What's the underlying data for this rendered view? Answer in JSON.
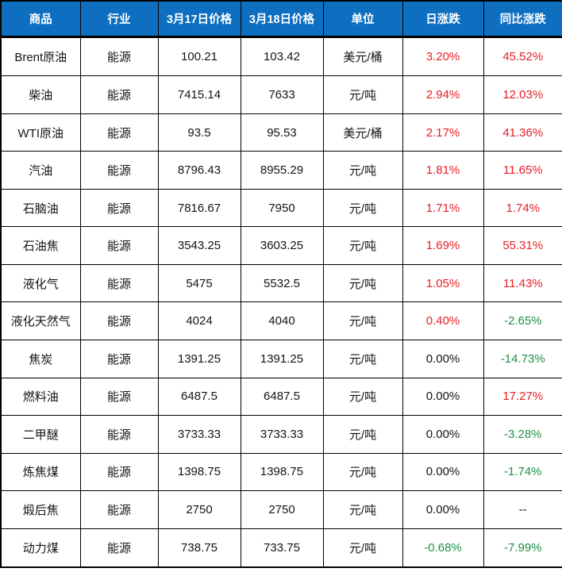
{
  "colors": {
    "header_bg": "#0e6fc1",
    "header_text": "#ffffff",
    "up": "#e81e25",
    "down": "#1e9043",
    "neutral": "#141414",
    "border": "#000000"
  },
  "chart_data": {
    "type": "table",
    "title": "",
    "legend": "red = increase, green = decrease, black = flat",
    "column_keys": [
      "commodity",
      "industry",
      "price-mar17",
      "price-mar18",
      "unit",
      "daily-change",
      "yoy-change"
    ],
    "columns": [
      "商品",
      "行业",
      "3月17日价格",
      "3月18日价格",
      "单位",
      "日涨跌",
      "同比涨跌"
    ],
    "rows": [
      {
        "cells": [
          {
            "text": "Brent原油"
          },
          {
            "text": "能源"
          },
          {
            "text": "100.21"
          },
          {
            "text": "103.42"
          },
          {
            "text": "美元/桶"
          },
          {
            "text": "3.20%",
            "color": "up"
          },
          {
            "text": "45.52%",
            "color": "up"
          }
        ]
      },
      {
        "cells": [
          {
            "text": "柴油"
          },
          {
            "text": "能源"
          },
          {
            "text": "7415.14"
          },
          {
            "text": "7633"
          },
          {
            "text": "元/吨"
          },
          {
            "text": "2.94%",
            "color": "up"
          },
          {
            "text": "12.03%",
            "color": "up"
          }
        ]
      },
      {
        "cells": [
          {
            "text": "WTI原油"
          },
          {
            "text": "能源"
          },
          {
            "text": "93.5"
          },
          {
            "text": "95.53"
          },
          {
            "text": "美元/桶"
          },
          {
            "text": "2.17%",
            "color": "up"
          },
          {
            "text": "41.36%",
            "color": "up"
          }
        ]
      },
      {
        "cells": [
          {
            "text": "汽油"
          },
          {
            "text": "能源"
          },
          {
            "text": "8796.43"
          },
          {
            "text": "8955.29"
          },
          {
            "text": "元/吨"
          },
          {
            "text": "1.81%",
            "color": "up"
          },
          {
            "text": "11.65%",
            "color": "up"
          }
        ]
      },
      {
        "cells": [
          {
            "text": "石脑油"
          },
          {
            "text": "能源"
          },
          {
            "text": "7816.67"
          },
          {
            "text": "7950"
          },
          {
            "text": "元/吨"
          },
          {
            "text": "1.71%",
            "color": "up"
          },
          {
            "text": "1.74%",
            "color": "up"
          }
        ]
      },
      {
        "cells": [
          {
            "text": "石油焦"
          },
          {
            "text": "能源"
          },
          {
            "text": "3543.25"
          },
          {
            "text": "3603.25"
          },
          {
            "text": "元/吨"
          },
          {
            "text": "1.69%",
            "color": "up"
          },
          {
            "text": "55.31%",
            "color": "up"
          }
        ]
      },
      {
        "cells": [
          {
            "text": "液化气"
          },
          {
            "text": "能源"
          },
          {
            "text": "5475"
          },
          {
            "text": "5532.5"
          },
          {
            "text": "元/吨"
          },
          {
            "text": "1.05%",
            "color": "up"
          },
          {
            "text": "11.43%",
            "color": "up"
          }
        ]
      },
      {
        "cells": [
          {
            "text": "液化天然气"
          },
          {
            "text": "能源"
          },
          {
            "text": "4024"
          },
          {
            "text": "4040"
          },
          {
            "text": "元/吨"
          },
          {
            "text": "0.40%",
            "color": "up"
          },
          {
            "text": "-2.65%",
            "color": "down"
          }
        ]
      },
      {
        "cells": [
          {
            "text": "焦炭"
          },
          {
            "text": "能源"
          },
          {
            "text": "1391.25"
          },
          {
            "text": "1391.25"
          },
          {
            "text": "元/吨"
          },
          {
            "text": "0.00%",
            "color": "flat"
          },
          {
            "text": "-14.73%",
            "color": "down"
          }
        ]
      },
      {
        "cells": [
          {
            "text": "燃料油"
          },
          {
            "text": "能源"
          },
          {
            "text": "6487.5"
          },
          {
            "text": "6487.5"
          },
          {
            "text": "元/吨"
          },
          {
            "text": "0.00%",
            "color": "flat"
          },
          {
            "text": "17.27%",
            "color": "up"
          }
        ]
      },
      {
        "cells": [
          {
            "text": "二甲醚"
          },
          {
            "text": "能源"
          },
          {
            "text": "3733.33"
          },
          {
            "text": "3733.33"
          },
          {
            "text": "元/吨"
          },
          {
            "text": "0.00%",
            "color": "flat"
          },
          {
            "text": "-3.28%",
            "color": "down"
          }
        ]
      },
      {
        "cells": [
          {
            "text": "炼焦煤"
          },
          {
            "text": "能源"
          },
          {
            "text": "1398.75"
          },
          {
            "text": "1398.75"
          },
          {
            "text": "元/吨"
          },
          {
            "text": "0.00%",
            "color": "flat"
          },
          {
            "text": "-1.74%",
            "color": "down"
          }
        ]
      },
      {
        "cells": [
          {
            "text": "煅后焦"
          },
          {
            "text": "能源"
          },
          {
            "text": "2750"
          },
          {
            "text": "2750"
          },
          {
            "text": "元/吨"
          },
          {
            "text": "0.00%",
            "color": "flat"
          },
          {
            "text": "--",
            "color": "flat"
          }
        ]
      },
      {
        "cells": [
          {
            "text": "动力煤"
          },
          {
            "text": "能源"
          },
          {
            "text": "738.75"
          },
          {
            "text": "733.75"
          },
          {
            "text": "元/吨"
          },
          {
            "text": "-0.68%",
            "color": "down"
          },
          {
            "text": "-7.99%",
            "color": "down"
          }
        ]
      }
    ]
  }
}
